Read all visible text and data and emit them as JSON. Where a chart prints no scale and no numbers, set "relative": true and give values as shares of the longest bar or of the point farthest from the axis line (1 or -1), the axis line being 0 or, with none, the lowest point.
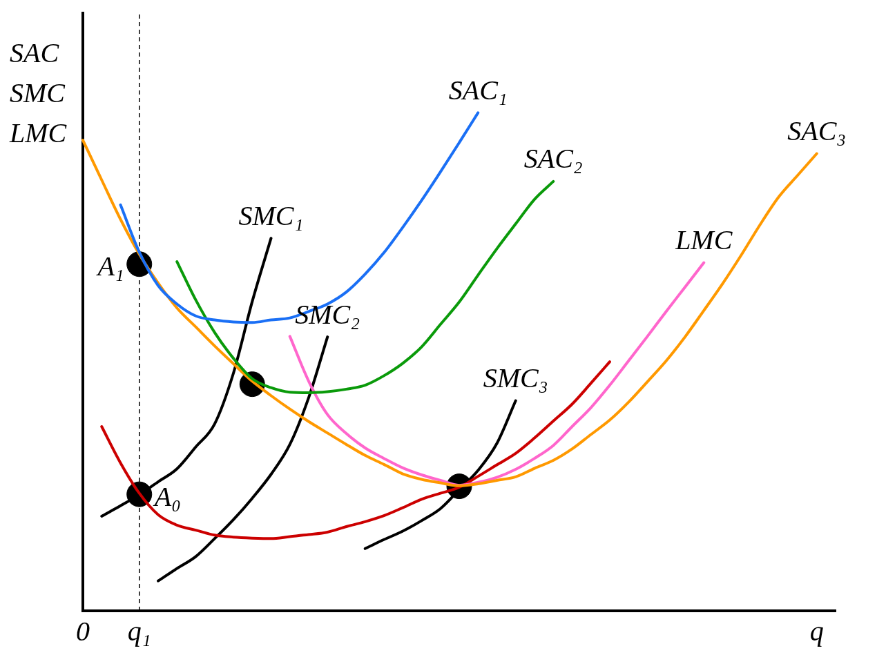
{
  "chart_data": {
    "type": "line",
    "relative": true,
    "ylabel": "SAC\nSMC\nLMC",
    "grid": false,
    "legend": false,
    "marker": "none",
    "line_style": "solid",
    "categories": [
      "0",
      null,
      null,
      "q₁",
      null,
      null,
      null,
      null,
      null,
      null,
      null,
      null,
      null,
      null,
      null,
      null,
      null,
      null,
      null,
      null,
      null,
      null,
      null,
      null,
      null,
      null,
      null,
      null,
      null,
      null,
      null,
      null,
      null,
      null,
      null,
      null,
      null,
      null,
      null,
      "q",
      null
    ],
    "series": [
      {
        "name": "SAC₁",
        "color": "#1a6ff5",
        "values": [
          null,
          null,
          0.815,
          0.72,
          0.653,
          0.616,
          0.592,
          0.584,
          0.58,
          0.579,
          0.584,
          0.588,
          0.601,
          0.616,
          0.64,
          0.676,
          0.719,
          0.77,
          0.824,
          0.881,
          0.94,
          1,
          null,
          null,
          null,
          null,
          null,
          null,
          null,
          null,
          null,
          null,
          null,
          null,
          null,
          null,
          null,
          null,
          null,
          null,
          null
        ]
      },
      {
        "name": "SAC₂",
        "color": "#0a9a0a",
        "values": [
          null,
          null,
          null,
          null,
          null,
          0.701,
          0.624,
          0.559,
          0.507,
          0.466,
          0.448,
          0.439,
          0.438,
          0.44,
          0.445,
          0.453,
          0.472,
          0.497,
          0.53,
          0.575,
          0.62,
          0.674,
          0.727,
          0.777,
          0.826,
          0.862,
          null,
          null,
          null,
          null,
          null,
          null,
          null,
          null,
          null,
          null,
          null,
          null,
          null,
          null,
          null
        ]
      },
      {
        "name": "SAC₃",
        "color": "#ff9900",
        "values": [
          0.945,
          0.865,
          0.786,
          0.716,
          0.658,
          0.608,
          0.57,
          0.532,
          0.496,
          0.461,
          0.432,
          0.405,
          0.38,
          0.357,
          0.334,
          0.312,
          0.294,
          0.275,
          0.264,
          0.257,
          0.251,
          0.255,
          0.262,
          0.269,
          0.286,
          0.302,
          0.325,
          0.354,
          0.383,
          0.419,
          0.46,
          0.502,
          0.55,
          0.603,
          0.657,
          0.715,
          0.776,
          0.832,
          0.875,
          0.918,
          null
        ]
      },
      {
        "name": "LMC",
        "color": "#ff66cc",
        "values": [
          null,
          null,
          null,
          null,
          null,
          null,
          null,
          null,
          null,
          null,
          null,
          0.551,
          0.461,
          0.394,
          0.356,
          0.327,
          0.306,
          0.287,
          0.273,
          0.262,
          0.252,
          0.258,
          0.268,
          0.284,
          0.306,
          0.332,
          0.37,
          0.408,
          0.453,
          0.502,
          0.551,
          0.601,
          0.65,
          0.699,
          null,
          null,
          null,
          null,
          null,
          null,
          null
        ]
      },
      {
        "color": "#cc0000",
        "values": [
          null,
          0.37,
          0.297,
          0.236,
          0.193,
          0.172,
          0.162,
          0.152,
          0.148,
          0.146,
          0.145,
          0.149,
          0.153,
          0.158,
          0.169,
          0.179,
          0.191,
          0.207,
          0.224,
          0.236,
          0.248,
          0.27,
          0.293,
          0.316,
          0.347,
          0.381,
          0.415,
          0.457,
          0.5,
          null,
          null,
          null,
          null,
          null,
          null,
          null,
          null,
          null,
          null,
          null,
          null
        ]
      },
      {
        "name": "SMC₁",
        "color": "#000000",
        "values": [
          null,
          0.19,
          0.211,
          0.233,
          0.259,
          0.285,
          0.329,
          0.375,
          0.477,
          0.621,
          0.748,
          null,
          null,
          null,
          null,
          null,
          null,
          null,
          null,
          null,
          null,
          null,
          null,
          null,
          null,
          null,
          null,
          null,
          null,
          null,
          null,
          null,
          null,
          null,
          null,
          null,
          null,
          null,
          null,
          null,
          null
        ]
      },
      {
        "name": "SMC₂",
        "color": "#000000",
        "values": [
          null,
          null,
          null,
          null,
          0.06,
          0.085,
          0.109,
          0.145,
          0.183,
          0.226,
          0.274,
          0.334,
          0.428,
          0.55,
          null,
          null,
          null,
          null,
          null,
          null,
          null,
          null,
          null,
          null,
          null,
          null,
          null,
          null,
          null,
          null,
          null,
          null,
          null,
          null,
          null,
          null,
          null,
          null,
          null,
          null,
          null
        ]
      },
      {
        "name": "SMC₃",
        "color": "#000000",
        "values": [
          null,
          null,
          null,
          null,
          null,
          null,
          null,
          null,
          null,
          null,
          null,
          null,
          null,
          null,
          null,
          0.125,
          0.143,
          0.16,
          0.181,
          0.205,
          0.243,
          0.282,
          0.336,
          0.422,
          null,
          null,
          null,
          null,
          null,
          null,
          null,
          null,
          null,
          null,
          null,
          null,
          null,
          null,
          null,
          null,
          null
        ]
      },
      {
        "type": "scatter",
        "marker": "circle",
        "color": "#000000",
        "values": [
          null,
          null,
          null,
          0.696,
          null,
          null,
          null,
          null,
          null,
          0.455,
          null,
          null,
          null,
          null,
          null,
          null,
          null,
          null,
          null,
          null,
          0.25,
          null,
          null,
          null,
          null,
          null,
          null,
          null,
          null,
          null,
          null,
          null,
          null,
          null,
          null,
          null,
          null,
          null,
          null,
          null,
          null
        ]
      },
      {
        "type": "scatter",
        "marker": "circle",
        "color": "#000000",
        "values": [
          null,
          null,
          null,
          0.234,
          null,
          null,
          null,
          null,
          null,
          null,
          null,
          null,
          null,
          null,
          null,
          null,
          null,
          null,
          null,
          null,
          null,
          null,
          null,
          null,
          null,
          null,
          null,
          null,
          null,
          null,
          null,
          null,
          null,
          null,
          null,
          null,
          null,
          null,
          null,
          null,
          null
        ]
      }
    ],
    "ref_lines": [
      {
        "axis": "x",
        "value": "q₁",
        "color": "#000000",
        "line_style": "dashed"
      }
    ],
    "annotations": [
      {
        "text": "A₁",
        "x": "q₁",
        "y": 0.696
      },
      {
        "text": "A₀",
        "x": "q₁",
        "y": 0.234
      }
    ]
  }
}
